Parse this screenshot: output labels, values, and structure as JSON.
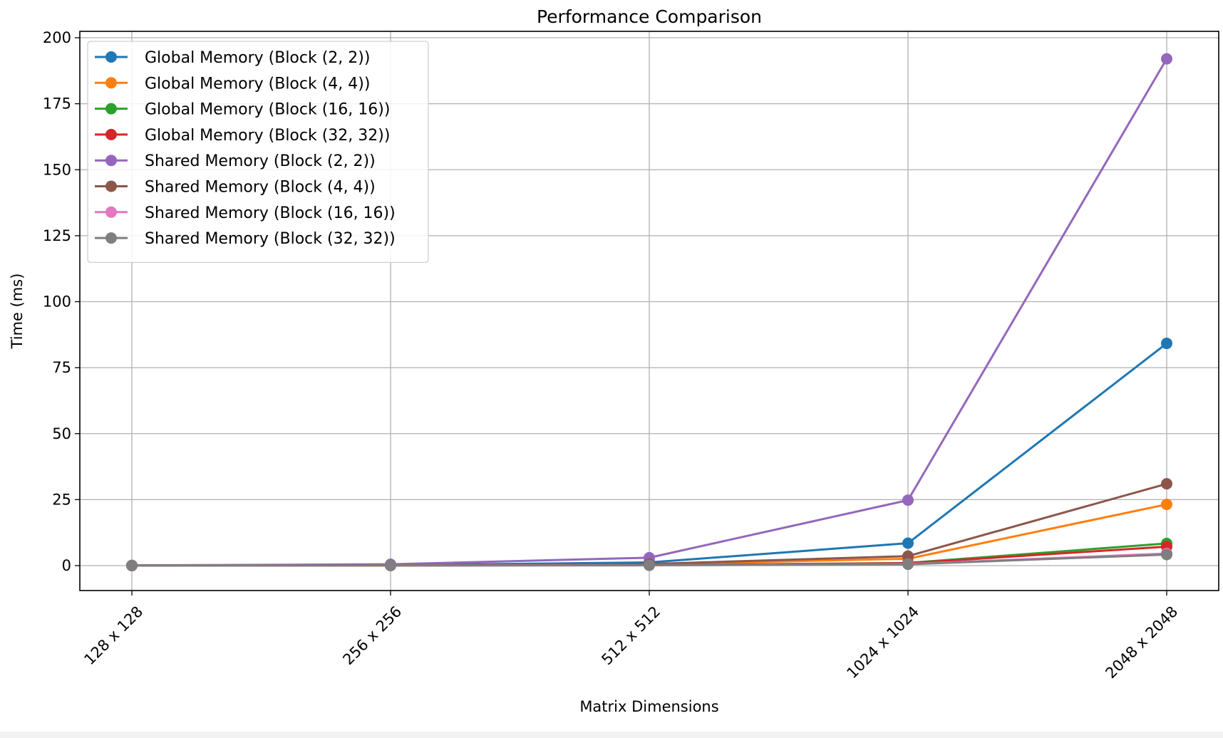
{
  "chart_data": {
    "type": "line",
    "title": "Performance Comparison",
    "xlabel": "Matrix Dimensions",
    "ylabel": "Time (ms)",
    "categories": [
      "128 x 128",
      "256 x 256",
      "512 x 512",
      "1024 x 1024",
      "2048 x 2048"
    ],
    "ylim": [
      -10,
      200
    ],
    "yticks": [
      0,
      25,
      50,
      75,
      100,
      125,
      150,
      175,
      200
    ],
    "grid": true,
    "legend_position": "top-left",
    "series": [
      {
        "name": "Global Memory (Block (2, 2))",
        "color": "#1f77b4",
        "values": [
          0.05,
          0.2,
          1.2,
          8.5,
          84.2
        ]
      },
      {
        "name": "Global Memory (Block (4, 4))",
        "color": "#ff7f0e",
        "values": [
          0.02,
          0.1,
          0.5,
          2.6,
          23.2
        ]
      },
      {
        "name": "Global Memory (Block (16, 16))",
        "color": "#2ca02c",
        "values": [
          0.01,
          0.05,
          0.2,
          1.0,
          8.4
        ]
      },
      {
        "name": "Global Memory (Block (32, 32))",
        "color": "#d62728",
        "values": [
          0.01,
          0.05,
          0.2,
          0.9,
          7.2
        ]
      },
      {
        "name": "Shared Memory (Block (2, 2))",
        "color": "#9467bd",
        "values": [
          0.1,
          0.5,
          3.0,
          24.8,
          192.0
        ]
      },
      {
        "name": "Shared Memory (Block (4, 4))",
        "color": "#8c564b",
        "values": [
          0.03,
          0.15,
          0.6,
          3.6,
          31.0
        ]
      },
      {
        "name": "Shared Memory (Block (16, 16))",
        "color": "#e377c2",
        "values": [
          0.01,
          0.05,
          0.15,
          0.6,
          4.6
        ]
      },
      {
        "name": "Shared Memory (Block (32, 32))",
        "color": "#7f7f7f",
        "values": [
          0.01,
          0.04,
          0.12,
          0.5,
          4.2
        ]
      }
    ]
  }
}
